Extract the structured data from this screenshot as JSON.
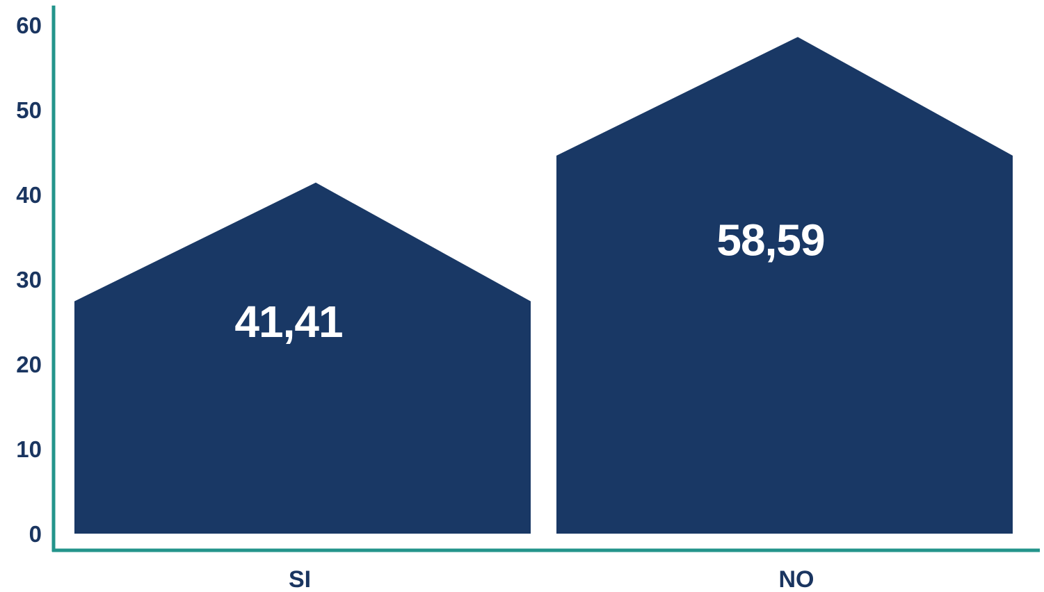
{
  "chart_data": {
    "type": "bar",
    "title": "",
    "xlabel": "",
    "ylabel": "",
    "categories": [
      "SI",
      "NO"
    ],
    "values": [
      41.41,
      58.59
    ],
    "value_labels": [
      "41,41",
      "58,59"
    ],
    "ylim": [
      0,
      60
    ],
    "yticks": [
      0,
      10,
      20,
      30,
      40,
      50,
      60
    ],
    "ytick_labels": [
      "0",
      "10",
      "20",
      "30",
      "40",
      "50",
      "60"
    ],
    "grid": false,
    "legend": "none",
    "bar_shape": "house (pentagon with peaked roof)"
  },
  "colors": {
    "bar": "#193865",
    "axis": "#23948b",
    "tick_text": "#1a3560",
    "value_text": "#ffffff"
  }
}
